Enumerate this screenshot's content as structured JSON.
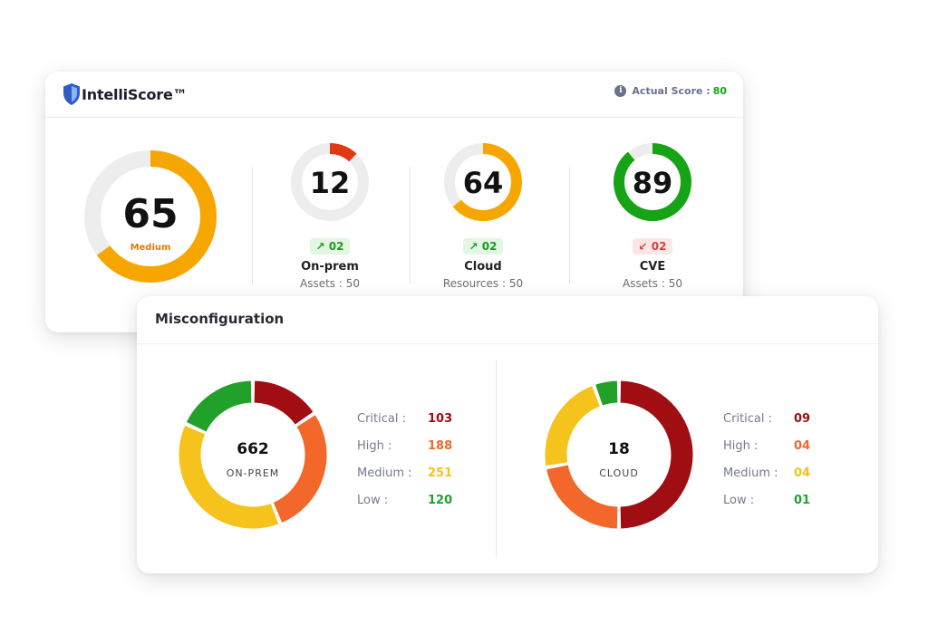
{
  "score_card": {
    "brand": "IntelliScore™",
    "actual_score_label": "Actual Score :",
    "actual_score_value": "80",
    "main_gauge": {
      "value": "65",
      "fraction": 0.65,
      "label": "Medium",
      "color": "#f7a600",
      "label_color": "#e07b00"
    },
    "metrics": [
      {
        "value": "12",
        "fraction": 0.12,
        "color": "#e03a12",
        "trend": "up",
        "delta": "02",
        "label": "On-prem",
        "sub": "Assets : 50"
      },
      {
        "value": "64",
        "fraction": 0.64,
        "color": "#f7a600",
        "trend": "up",
        "delta": "02",
        "label": "Cloud",
        "sub": "Resources : 50"
      },
      {
        "value": "89",
        "fraction": 0.89,
        "color": "#16a316",
        "trend": "down",
        "delta": "02",
        "label": "CVE",
        "sub": "Assets : 50"
      }
    ]
  },
  "misconfiguration": {
    "title": "Misconfiguration",
    "colors": {
      "critical": "#a00d12",
      "high": "#f4672a",
      "medium": "#f6c21c",
      "low": "#22a12a"
    },
    "panels": [
      {
        "total": "662",
        "name": "ON-PREM",
        "legend": [
          {
            "key": "critical",
            "label": "Critical :",
            "value": "103"
          },
          {
            "key": "high",
            "label": "High :",
            "value": "188"
          },
          {
            "key": "medium",
            "label": "Medium :",
            "value": "251"
          },
          {
            "key": "low",
            "label": "Low :",
            "value": "120"
          }
        ]
      },
      {
        "total": "18",
        "name": "CLOUD",
        "legend": [
          {
            "key": "critical",
            "label": "Critical :",
            "value": "09"
          },
          {
            "key": "high",
            "label": "High :",
            "value": "04"
          },
          {
            "key": "medium",
            "label": "Medium :",
            "value": "04"
          },
          {
            "key": "low",
            "label": "Low :",
            "value": "01"
          }
        ]
      }
    ]
  }
}
